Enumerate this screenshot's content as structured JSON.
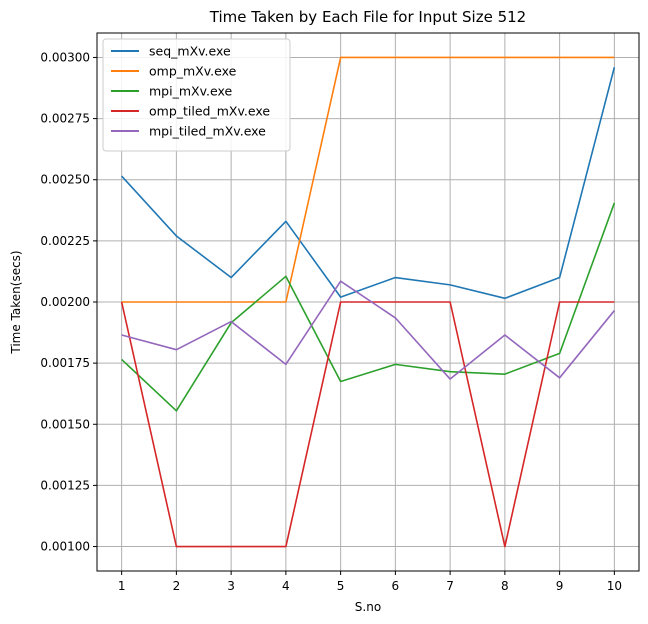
{
  "chart_data": {
    "type": "line",
    "title": "Time Taken by Each File for Input Size 512",
    "xlabel": "S.no",
    "ylabel": "Time Taken(secs)",
    "x": [
      1,
      2,
      3,
      4,
      5,
      6,
      7,
      8,
      9,
      10
    ],
    "xlim": [
      0.55,
      10.45
    ],
    "ylim": [
      0.0009,
      0.0031
    ],
    "x_ticks": [
      "1",
      "2",
      "3",
      "4",
      "5",
      "6",
      "7",
      "8",
      "9",
      "10"
    ],
    "y_ticks": [
      0.001,
      0.00125,
      0.0015,
      0.00175,
      0.002,
      0.00225,
      0.0025,
      0.00275,
      0.003
    ],
    "y_tick_labels": [
      "0.00100",
      "0.00125",
      "0.00150",
      "0.00175",
      "0.00200",
      "0.00225",
      "0.00250",
      "0.00275",
      "0.00300"
    ],
    "grid": true,
    "legend_position": "top-left",
    "series": [
      {
        "name": "seq_mXv.exe",
        "color": "#1f77b4",
        "values": [
          0.002515,
          0.00227,
          0.0021,
          0.00233,
          0.00202,
          0.0021,
          0.00207,
          0.002015,
          0.0021,
          0.00296
        ]
      },
      {
        "name": "omp_mXv.exe",
        "color": "#ff7f0e",
        "values": [
          0.002,
          0.002,
          0.002,
          0.002,
          0.003,
          0.003,
          0.003,
          0.003,
          0.003,
          0.003
        ]
      },
      {
        "name": "mpi_mXv.exe",
        "color": "#2ca02c",
        "values": [
          0.001765,
          0.001555,
          0.001915,
          0.002105,
          0.001675,
          0.001745,
          0.001715,
          0.001705,
          0.00179,
          0.002405
        ]
      },
      {
        "name": "omp_tiled_mXv.exe",
        "color": "#d62728",
        "values": [
          0.002,
          0.001,
          0.001,
          0.001,
          0.002,
          0.002,
          0.002,
          0.001,
          0.002,
          0.002
        ]
      },
      {
        "name": "mpi_tiled_mXv.exe",
        "color": "#9467bd",
        "values": [
          0.001865,
          0.001805,
          0.00192,
          0.001745,
          0.002085,
          0.001935,
          0.001685,
          0.001865,
          0.00169,
          0.001965
        ]
      }
    ]
  }
}
